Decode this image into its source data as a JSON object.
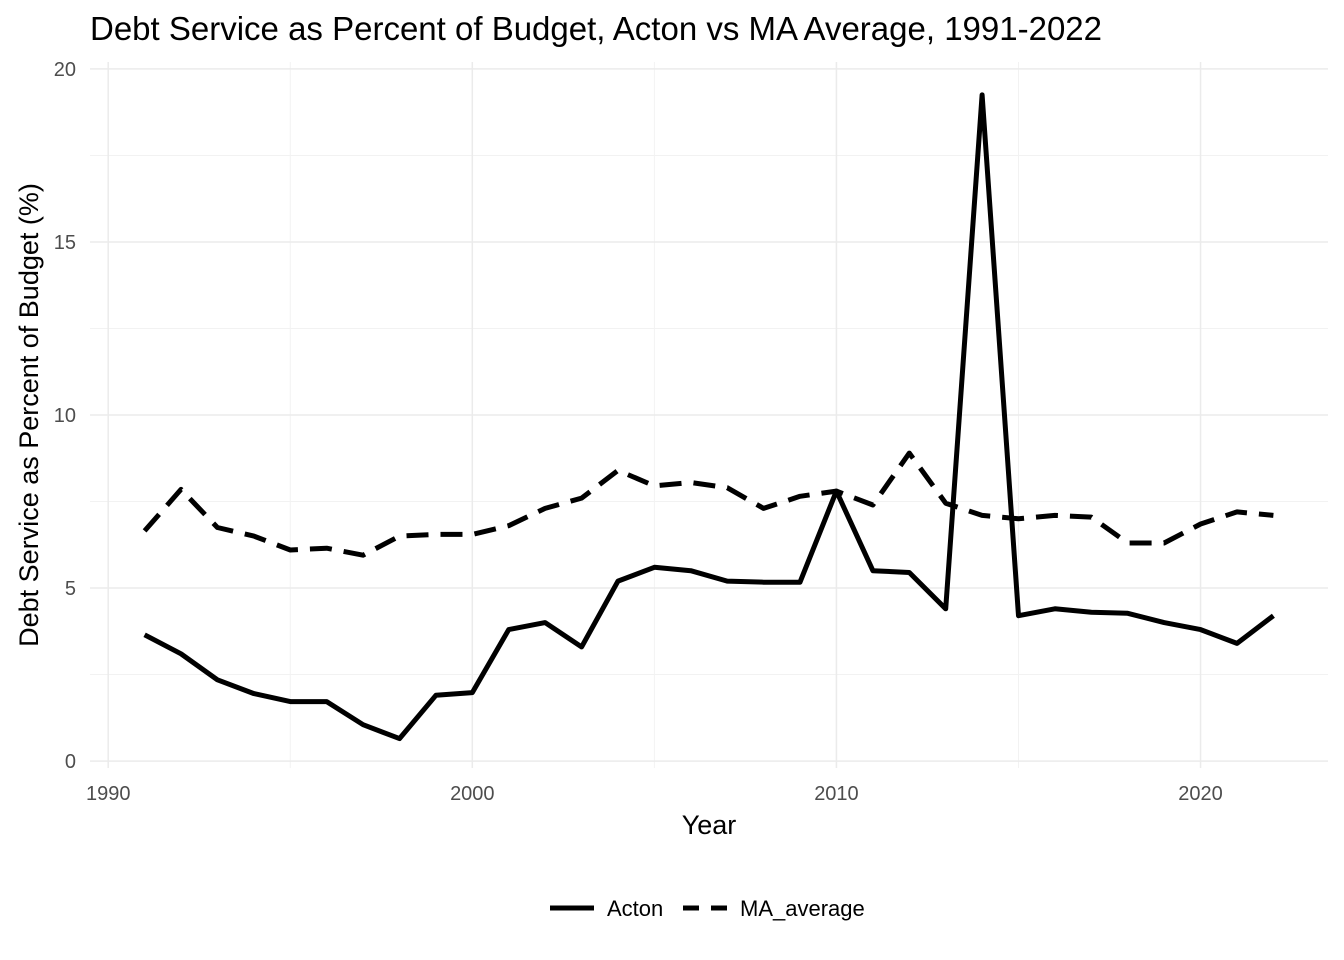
{
  "chart_data": {
    "type": "line",
    "title": "Debt Service as Percent of Budget, Acton vs MA Average, 1991-2022",
    "xlabel": "Year",
    "ylabel": "Debt Service as Percent of Budget (%)",
    "xlim": [
      1989.5,
      2023.5
    ],
    "ylim": [
      -0.2,
      20.2
    ],
    "x_ticks": [
      1990,
      2000,
      2010,
      2020
    ],
    "y_ticks": [
      0,
      5,
      10,
      15,
      20
    ],
    "grid": true,
    "legend_position": "bottom",
    "x": [
      1991,
      1992,
      1993,
      1994,
      1995,
      1996,
      1997,
      1998,
      1999,
      2000,
      2001,
      2002,
      2003,
      2004,
      2005,
      2006,
      2007,
      2008,
      2009,
      2010,
      2011,
      2012,
      2013,
      2014,
      2015,
      2016,
      2017,
      2018,
      2019,
      2020,
      2021,
      2022
    ],
    "series": [
      {
        "name": "Acton",
        "line_style": "solid",
        "color": "#000000",
        "values": [
          3.65,
          3.1,
          2.35,
          1.95,
          1.72,
          1.72,
          1.05,
          0.65,
          1.9,
          1.98,
          3.8,
          4.0,
          3.3,
          5.2,
          5.6,
          5.5,
          5.2,
          5.17,
          5.17,
          7.8,
          5.5,
          5.45,
          4.4,
          19.25,
          4.2,
          4.4,
          4.3,
          4.27,
          4.0,
          3.8,
          3.4,
          4.2
        ]
      },
      {
        "name": "MA_average",
        "line_style": "dashed",
        "color": "#000000",
        "values": [
          6.65,
          7.85,
          6.75,
          6.5,
          6.1,
          6.15,
          5.95,
          6.5,
          6.55,
          6.55,
          6.8,
          7.3,
          7.6,
          8.4,
          7.95,
          8.05,
          7.9,
          7.3,
          7.65,
          7.8,
          7.4,
          8.9,
          7.45,
          7.1,
          7.0,
          7.1,
          7.05,
          6.3,
          6.3,
          6.85,
          7.2,
          7.1
        ]
      }
    ]
  }
}
